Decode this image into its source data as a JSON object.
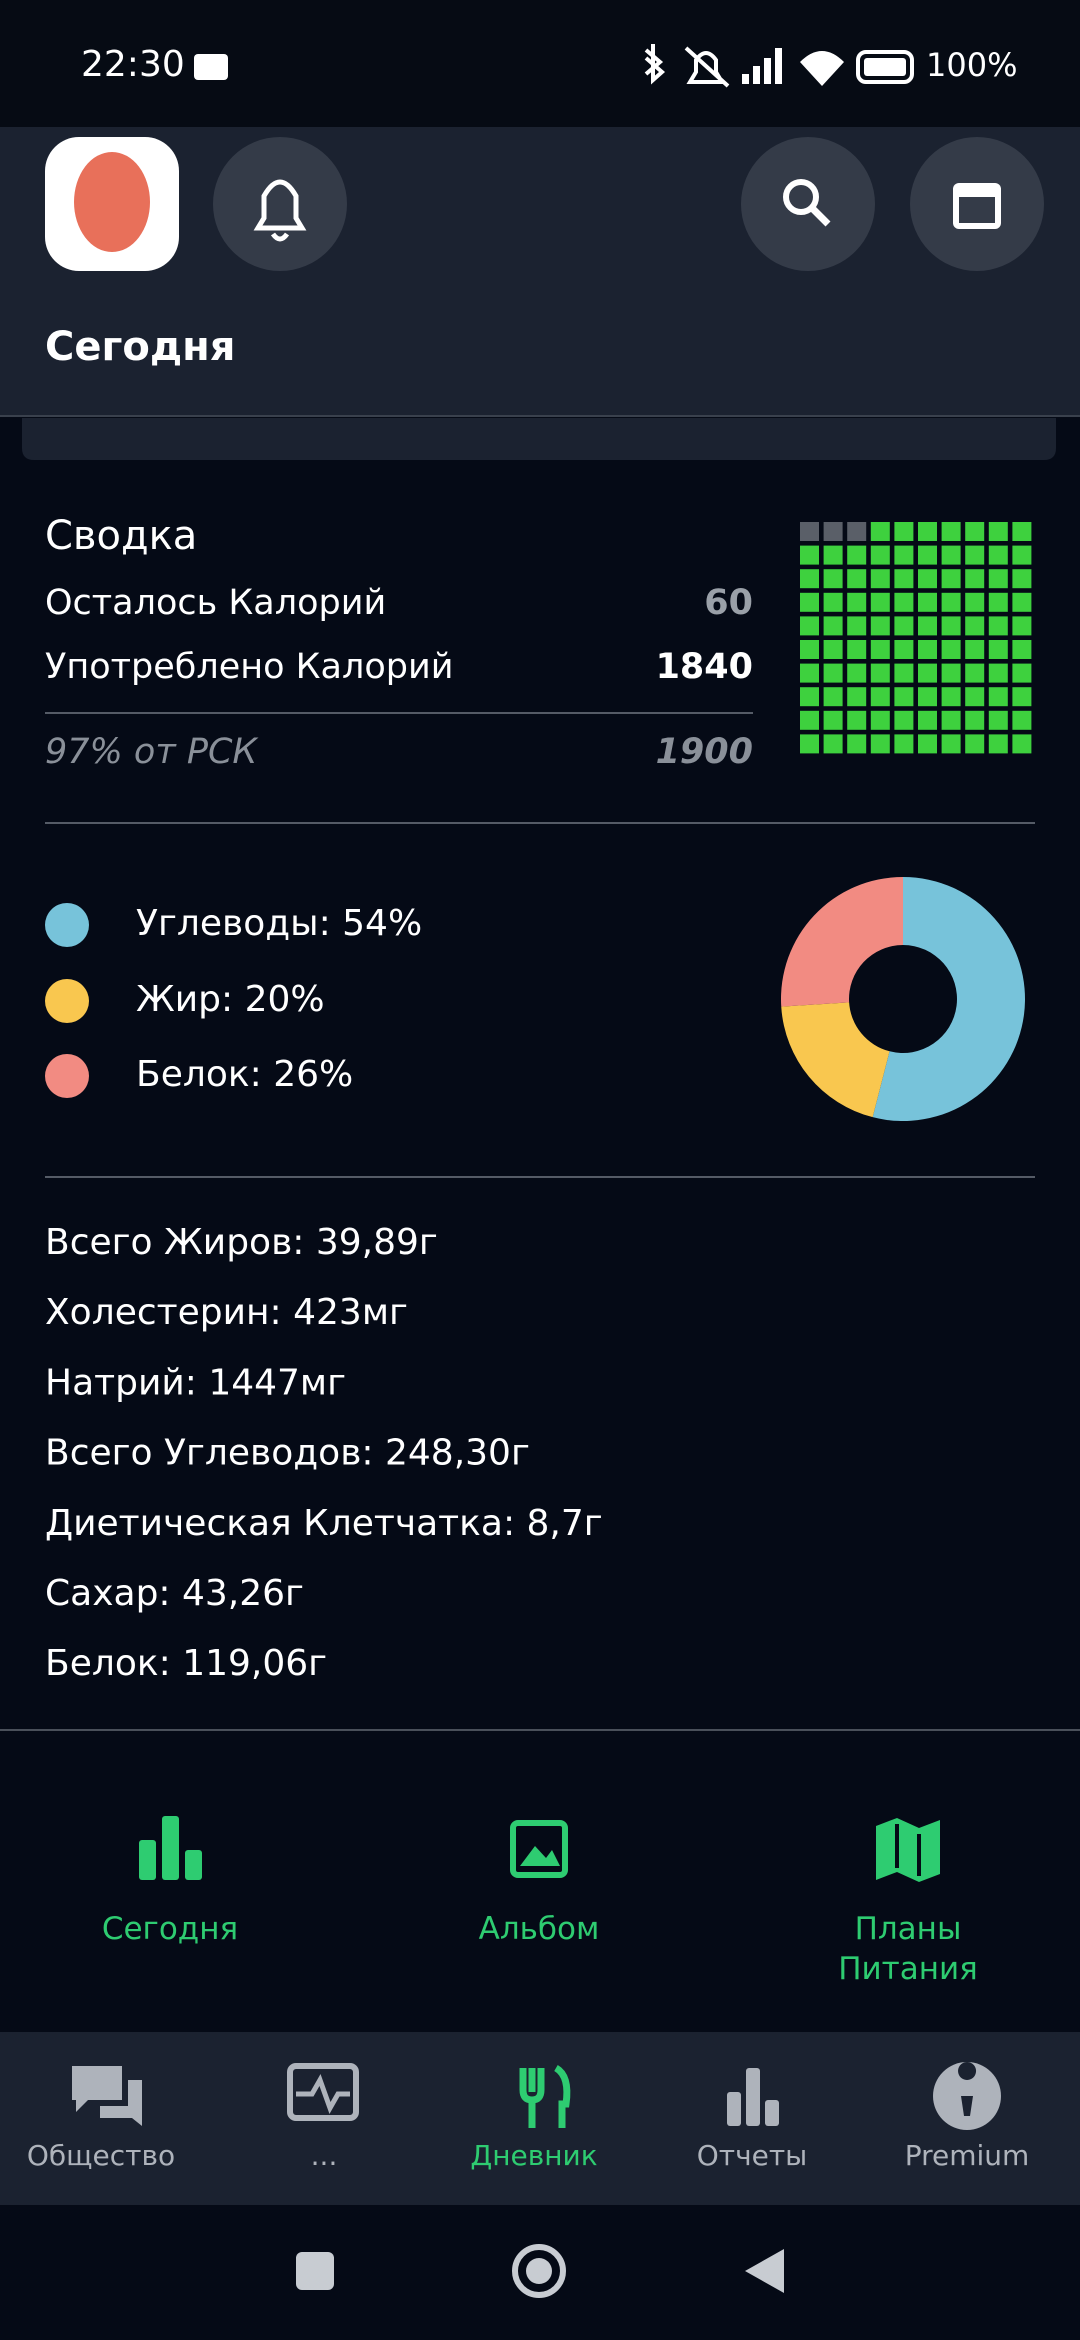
{
  "status_bar": {
    "time": "22:30",
    "battery": "100%"
  },
  "header": {
    "title": "Сегодня"
  },
  "summary": {
    "title": "Сводка",
    "rows": [
      {
        "label": "Осталось Калорий",
        "value": "60"
      },
      {
        "label": "Употреблено Калорий",
        "value": "1840"
      }
    ],
    "goal_label": "97% от РСК",
    "goal_value": "1900",
    "consumed_percent": 97
  },
  "macros": {
    "type": "donut",
    "items": [
      {
        "label": "Углеводы: 54%",
        "value": 54,
        "color": "#77c3da"
      },
      {
        "label": "Жир: 20%",
        "value": 20,
        "color": "#f9c74f"
      },
      {
        "label": "Белок: 26%",
        "value": 26,
        "color": "#f28b82"
      }
    ]
  },
  "nutrients": [
    "Всего Жиров: 39,89г",
    "Холестерин: 423мг",
    "Натрий: 1447мг",
    "Всего Углеводов: 248,30г",
    "Диетическая Клетчатка: 8,7г",
    "Сахар: 43,26г",
    "Белок: 119,06г"
  ],
  "quick_links": [
    "Сегодня",
    "Альбом",
    "Планы Питания"
  ],
  "bottom_nav": [
    {
      "label": "Общество"
    },
    {
      "label": "..."
    },
    {
      "label": "Дневник",
      "active": true
    },
    {
      "label": "Отчеты"
    },
    {
      "label": "Premium"
    }
  ]
}
